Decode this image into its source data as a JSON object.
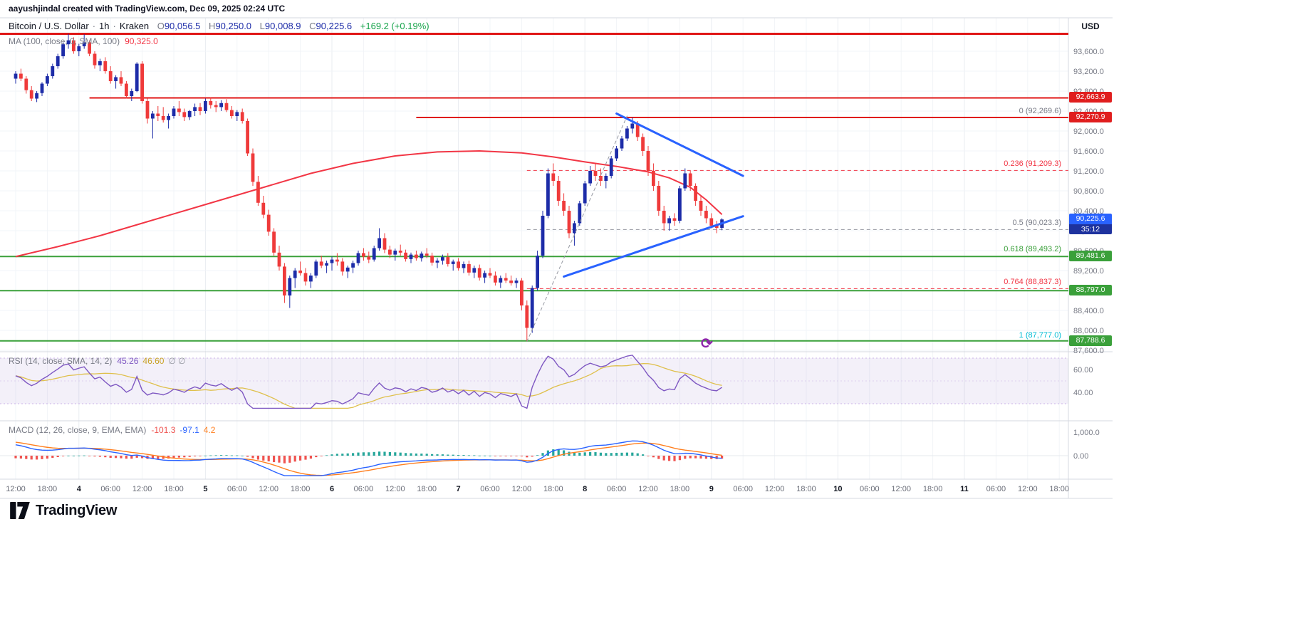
{
  "header": {
    "attribution": "aayushjindal created with TradingView.com, Dec 09, 2025 02:24 UTC",
    "symbol": {
      "title": "Bitcoin / U.S. Dollar",
      "sep": "·",
      "interval": "1h",
      "exchange": "Kraken",
      "o_label": "O",
      "o": "90,056.5",
      "h_label": "H",
      "h": "90,250.0",
      "l_label": "L",
      "l": "90,008.9",
      "c_label": "C",
      "c": "90,225.6",
      "change": "+169.2 (+0.19%)"
    },
    "ma_indicator": {
      "label": "MA (100, close, 0, SMA, 100)",
      "value": "90,325.0"
    }
  },
  "axis": {
    "currency_label": "USD"
  },
  "rsi": {
    "label": "RSI (14, close, SMA, 14, 2)",
    "value": "45.26",
    "sma_value": "46.60",
    "extra": "∅ ∅"
  },
  "macd": {
    "label": "MACD (12, 26, close, 9, EMA, EMA)",
    "hist_value": "-101.3",
    "macd_value": "-97.1",
    "signal_value": "4.2"
  },
  "badges": {
    "r1": "92,663.9",
    "r2": "92,270.9",
    "current": "90,225.6",
    "countdown": "35:12",
    "g1": "89,481.6",
    "g2": "88,797.0",
    "g3": "87,788.6"
  },
  "logo": {
    "text": "TradingView"
  },
  "colors": {
    "up": "#1d2ca8",
    "down": "#ef3a3a",
    "ma": "#f23645",
    "rsi": "#7e57c2",
    "rsi_sma": "#dfc04c",
    "macd": "#2962ff",
    "signal": "#ff7f1f",
    "hist_up": "#26a69a",
    "hist_down": "#ef5350",
    "accent_blue": "#2962ff"
  },
  "chart_data": {
    "type": "candlestick",
    "title": "Bitcoin / U.S. Dollar",
    "interval": "1h",
    "exchange": "Kraken",
    "price_axis": {
      "min": 87600,
      "max": 93600,
      "step": 400
    },
    "price_ticks": [
      {
        "p": 93600,
        "label": "93,600.0"
      },
      {
        "p": 93200,
        "label": "93,200.0"
      },
      {
        "p": 92800,
        "label": "92,800.0"
      },
      {
        "p": 92400,
        "label": "92,400.0"
      },
      {
        "p": 92000,
        "label": "92,000.0"
      },
      {
        "p": 91600,
        "label": "91,600.0"
      },
      {
        "p": 91200,
        "label": "91,200.0"
      },
      {
        "p": 90800,
        "label": "90,800.0"
      },
      {
        "p": 90400,
        "label": "90,400.0"
      },
      {
        "p": 90000,
        "label": "90,000.0"
      },
      {
        "p": 89600,
        "label": "89,600.0"
      },
      {
        "p": 89200,
        "label": "89,200.0"
      },
      {
        "p": 88800,
        "label": "88,800.0"
      },
      {
        "p": 88400,
        "label": "88,400.0"
      },
      {
        "p": 88000,
        "label": "88,000.0"
      },
      {
        "p": 87600,
        "label": "87,600.0"
      }
    ],
    "time_axis": [
      [
        0,
        "12:00"
      ],
      [
        6,
        "18:00"
      ],
      [
        12,
        "4"
      ],
      [
        18,
        "06:00"
      ],
      [
        24,
        "12:00"
      ],
      [
        30,
        "18:00"
      ],
      [
        36,
        "5"
      ],
      [
        42,
        "06:00"
      ],
      [
        48,
        "12:00"
      ],
      [
        54,
        "18:00"
      ],
      [
        60,
        "6"
      ],
      [
        66,
        "06:00"
      ],
      [
        72,
        "12:00"
      ],
      [
        78,
        "18:00"
      ],
      [
        84,
        "7"
      ],
      [
        90,
        "06:00"
      ],
      [
        96,
        "12:00"
      ],
      [
        102,
        "18:00"
      ],
      [
        108,
        "8"
      ],
      [
        114,
        "06:00"
      ],
      [
        120,
        "12:00"
      ],
      [
        126,
        "18:00"
      ],
      [
        132,
        "9"
      ],
      [
        138,
        "06:00"
      ],
      [
        144,
        "12:00"
      ],
      [
        150,
        "18:00"
      ],
      [
        156,
        "10"
      ],
      [
        162,
        "06:00"
      ],
      [
        168,
        "12:00"
      ],
      [
        174,
        "18:00"
      ],
      [
        180,
        "11"
      ],
      [
        186,
        "06:00"
      ],
      [
        192,
        "12:00"
      ],
      [
        198,
        "18:00"
      ]
    ],
    "candles": [
      [
        93050,
        93200,
        92950,
        93150
      ],
      [
        93150,
        93250,
        93000,
        93050
      ],
      [
        93050,
        93100,
        92750,
        92820
      ],
      [
        92820,
        92900,
        92600,
        92650
      ],
      [
        92650,
        92800,
        92580,
        92760
      ],
      [
        92760,
        92980,
        92700,
        92950
      ],
      [
        92950,
        93150,
        92900,
        93100
      ],
      [
        93100,
        93350,
        93050,
        93300
      ],
      [
        93300,
        93550,
        93250,
        93500
      ],
      [
        93500,
        93780,
        93450,
        93740
      ],
      [
        93740,
        93950,
        93650,
        93820
      ],
      [
        93820,
        93880,
        93550,
        93600
      ],
      [
        93600,
        93750,
        93500,
        93700
      ],
      [
        93700,
        93940,
        93650,
        93780
      ],
      [
        93780,
        93820,
        93500,
        93550
      ],
      [
        93550,
        93600,
        93250,
        93320
      ],
      [
        93320,
        93450,
        93200,
        93400
      ],
      [
        93400,
        93480,
        93150,
        93200
      ],
      [
        93200,
        93300,
        92950,
        93000
      ],
      [
        93000,
        93120,
        92850,
        93080
      ],
      [
        93080,
        93200,
        92900,
        92950
      ],
      [
        92950,
        93000,
        92650,
        92700
      ],
      [
        92700,
        92850,
        92600,
        92800
      ],
      [
        92800,
        93380,
        92780,
        93350
      ],
      [
        93350,
        93400,
        92550,
        92600
      ],
      [
        92600,
        92650,
        92150,
        92250
      ],
      [
        92250,
        92400,
        91850,
        92350
      ],
      [
        92350,
        92500,
        92200,
        92300
      ],
      [
        92300,
        92480,
        92170,
        92220
      ],
      [
        92220,
        92350,
        92050,
        92300
      ],
      [
        92300,
        92500,
        92250,
        92450
      ],
      [
        92450,
        92600,
        92300,
        92380
      ],
      [
        92380,
        92450,
        92200,
        92280
      ],
      [
        92280,
        92420,
        92220,
        92400
      ],
      [
        92400,
        92550,
        92300,
        92480
      ],
      [
        92480,
        92560,
        92320,
        92400
      ],
      [
        92400,
        92650,
        92350,
        92600
      ],
      [
        92600,
        92680,
        92450,
        92520
      ],
      [
        92520,
        92600,
        92380,
        92480
      ],
      [
        92480,
        92620,
        92400,
        92560
      ],
      [
        92560,
        92640,
        92380,
        92420
      ],
      [
        92420,
        92500,
        92250,
        92300
      ],
      [
        92300,
        92420,
        92200,
        92380
      ],
      [
        92380,
        92450,
        92150,
        92200
      ],
      [
        92200,
        92250,
        91500,
        91550
      ],
      [
        91550,
        91650,
        90900,
        90980
      ],
      [
        90980,
        91100,
        90500,
        90560
      ],
      [
        90560,
        90700,
        90250,
        90320
      ],
      [
        90320,
        90420,
        89900,
        89980
      ],
      [
        89980,
        90050,
        89500,
        89560
      ],
      [
        89560,
        89700,
        89200,
        89280
      ],
      [
        89280,
        89350,
        88550,
        88700
      ],
      [
        88700,
        89100,
        88450,
        89050
      ],
      [
        89050,
        89250,
        88850,
        89200
      ],
      [
        89200,
        89380,
        89100,
        89150
      ],
      [
        89150,
        89250,
        88900,
        88980
      ],
      [
        88980,
        89150,
        88850,
        89100
      ],
      [
        89100,
        89420,
        89050,
        89380
      ],
      [
        89380,
        89500,
        89250,
        89300
      ],
      [
        89300,
        89400,
        89150,
        89350
      ],
      [
        89350,
        89480,
        89200,
        89420
      ],
      [
        89420,
        89550,
        89300,
        89380
      ],
      [
        89380,
        89450,
        89100,
        89180
      ],
      [
        89180,
        89300,
        89050,
        89260
      ],
      [
        89260,
        89400,
        89150,
        89350
      ],
      [
        89350,
        89600,
        89300,
        89550
      ],
      [
        89550,
        89650,
        89400,
        89480
      ],
      [
        89480,
        89580,
        89350,
        89420
      ],
      [
        89420,
        89700,
        89380,
        89650
      ],
      [
        89650,
        90050,
        89600,
        89850
      ],
      [
        89850,
        89950,
        89550,
        89620
      ],
      [
        89620,
        89700,
        89450,
        89520
      ],
      [
        89520,
        89640,
        89400,
        89600
      ],
      [
        89600,
        89720,
        89500,
        89560
      ],
      [
        89560,
        89620,
        89380,
        89430
      ],
      [
        89430,
        89560,
        89350,
        89520
      ],
      [
        89520,
        89600,
        89400,
        89450
      ],
      [
        89450,
        89580,
        89380,
        89540
      ],
      [
        89540,
        89650,
        89450,
        89500
      ],
      [
        89500,
        89560,
        89300,
        89360
      ],
      [
        89360,
        89450,
        89250,
        89400
      ],
      [
        89400,
        89520,
        89320,
        89470
      ],
      [
        89470,
        89550,
        89280,
        89330
      ],
      [
        89330,
        89420,
        89200,
        89380
      ],
      [
        89380,
        89450,
        89200,
        89250
      ],
      [
        89250,
        89380,
        89150,
        89330
      ],
      [
        89330,
        89400,
        89100,
        89160
      ],
      [
        89160,
        89300,
        89050,
        89250
      ],
      [
        89250,
        89320,
        89000,
        89060
      ],
      [
        89060,
        89200,
        88950,
        89150
      ],
      [
        89150,
        89250,
        89050,
        89100
      ],
      [
        89100,
        89180,
        88900,
        88960
      ],
      [
        88960,
        89100,
        88850,
        89050
      ],
      [
        89050,
        89150,
        88950,
        89000
      ],
      [
        89000,
        89100,
        88900,
        88950
      ],
      [
        88950,
        89050,
        88850,
        89000
      ],
      [
        89000,
        89050,
        88400,
        88500
      ],
      [
        88500,
        88600,
        87777,
        88050
      ],
      [
        88050,
        88900,
        87950,
        88850
      ],
      [
        88850,
        89600,
        88800,
        89500
      ],
      [
        89500,
        90400,
        89450,
        90300
      ],
      [
        90300,
        91250,
        90250,
        91150
      ],
      [
        91150,
        91350,
        90900,
        91000
      ],
      [
        91000,
        91100,
        90500,
        90600
      ],
      [
        90600,
        90750,
        90300,
        90400
      ],
      [
        90400,
        90500,
        89850,
        89950
      ],
      [
        89950,
        90200,
        89700,
        90150
      ],
      [
        90150,
        90600,
        90100,
        90550
      ],
      [
        90550,
        91000,
        90500,
        90950
      ],
      [
        90950,
        91300,
        90900,
        91200
      ],
      [
        91200,
        91350,
        91000,
        91100
      ],
      [
        91100,
        91250,
        90900,
        91000
      ],
      [
        91000,
        91150,
        90850,
        91100
      ],
      [
        91100,
        91500,
        91050,
        91450
      ],
      [
        91450,
        91700,
        91400,
        91650
      ],
      [
        91650,
        91900,
        91600,
        91850
      ],
      [
        91850,
        92100,
        91800,
        92050
      ],
      [
        92050,
        92270,
        91950,
        92150
      ],
      [
        92150,
        92200,
        91800,
        91880
      ],
      [
        91880,
        91950,
        91500,
        91600
      ],
      [
        91600,
        91700,
        91100,
        91200
      ],
      [
        91200,
        91350,
        90800,
        90900
      ],
      [
        90900,
        91000,
        90300,
        90400
      ],
      [
        90400,
        90500,
        90000,
        90150
      ],
      [
        90150,
        90300,
        90000,
        90250
      ],
      [
        90250,
        90350,
        90100,
        90200
      ],
      [
        90200,
        90900,
        90150,
        90850
      ],
      [
        90850,
        91250,
        90800,
        91150
      ],
      [
        91150,
        91200,
        90800,
        90900
      ],
      [
        90900,
        90950,
        90500,
        90600
      ],
      [
        90600,
        90700,
        90300,
        90400
      ],
      [
        90400,
        90500,
        90150,
        90250
      ],
      [
        90250,
        90350,
        90050,
        90100
      ],
      [
        90100,
        90200,
        89950,
        90056
      ],
      [
        90056.5,
        90250,
        90008.9,
        90225.6
      ]
    ],
    "ma100": [
      [
        0,
        89480
      ],
      [
        8,
        89680
      ],
      [
        16,
        89900
      ],
      [
        24,
        90150
      ],
      [
        32,
        90400
      ],
      [
        40,
        90650
      ],
      [
        48,
        90900
      ],
      [
        56,
        91150
      ],
      [
        64,
        91350
      ],
      [
        72,
        91500
      ],
      [
        80,
        91580
      ],
      [
        88,
        91600
      ],
      [
        96,
        91560
      ],
      [
        102,
        91480
      ],
      [
        108,
        91380
      ],
      [
        114,
        91290
      ],
      [
        120,
        91180
      ],
      [
        124,
        91060
      ],
      [
        128,
        90870
      ],
      [
        131,
        90620
      ],
      [
        134,
        90325
      ]
    ],
    "levels": [
      {
        "name": "resistance-top",
        "price": 93950,
        "color": "#e01616",
        "width": 3,
        "from_i": -3
      },
      {
        "name": "resistance-92663",
        "price": 92663.9,
        "color": "#e01616",
        "width": 2,
        "from_i": 14
      },
      {
        "name": "resistance-92270",
        "price": 92270.9,
        "color": "#e01616",
        "width": 2,
        "from_i": 76
      },
      {
        "name": "support-89481",
        "price": 89481.6,
        "color": "#3aa03a",
        "width": 2,
        "from_i": -3
      },
      {
        "name": "support-88797",
        "price": 88797.0,
        "color": "#3aa03a",
        "width": 2,
        "from_i": -3
      },
      {
        "name": "support-87788",
        "price": 87788.6,
        "color": "#3aa03a",
        "width": 2,
        "from_i": -3
      }
    ],
    "fib": {
      "from_i": 97,
      "levels": [
        {
          "value": "0",
          "price": 92269.6,
          "label": "0 (92,269.6)",
          "color": "#787b86",
          "dashed": false
        },
        {
          "value": "0.236",
          "price": 91209.3,
          "label": "0.236 (91,209.3)",
          "color": "#f23645",
          "dashed": true
        },
        {
          "value": "0.5",
          "price": 90023.3,
          "label": "0.5 (90,023.3)",
          "color": "#787b86",
          "dashed": true
        },
        {
          "value": "0.618",
          "price": 89493.2,
          "label": "0.618 (89,493.2)",
          "color": "#3aa03a",
          "dashed": false
        },
        {
          "value": "0.764",
          "price": 88837.3,
          "label": "0.764 (88,837.3)",
          "color": "#f23645",
          "dashed": true
        },
        {
          "value": "1",
          "price": 87777.0,
          "label": "1 (87,777.0)",
          "color": "#00bcd4",
          "dashed": false
        }
      ]
    },
    "drawings": [
      {
        "name": "triangle-upper-trendline",
        "color": "#2962ff",
        "width": 3,
        "p1": [
          114,
          92350
        ],
        "p2": [
          138,
          91100
        ],
        "dash": null
      },
      {
        "name": "triangle-lower-trendline",
        "color": "#2962ff",
        "width": 3,
        "p1": [
          104,
          89080
        ],
        "p2": [
          138,
          90290
        ],
        "dash": null
      },
      {
        "name": "fib-connector",
        "color": "#9598a1",
        "width": 1,
        "p1": [
          97,
          87777
        ],
        "p2": [
          116,
          92300
        ],
        "dash": "4 4"
      }
    ],
    "rsi_panel": {
      "last": 45.26,
      "sma_last": 46.6,
      "axis": [
        {
          "v": 60,
          "label": "60.00"
        },
        {
          "v": 40,
          "label": "40.00"
        }
      ],
      "bands": [
        70,
        50,
        30
      ],
      "band_fill": "rgba(126,87,194,0.09)"
    },
    "macd_panel": {
      "hist": -101.3,
      "macd": -97.1,
      "signal": 4.2,
      "axis": [
        {
          "v": 1000,
          "label": "1,000.0"
        },
        {
          "v": 0,
          "label": "0.00"
        }
      ]
    }
  }
}
